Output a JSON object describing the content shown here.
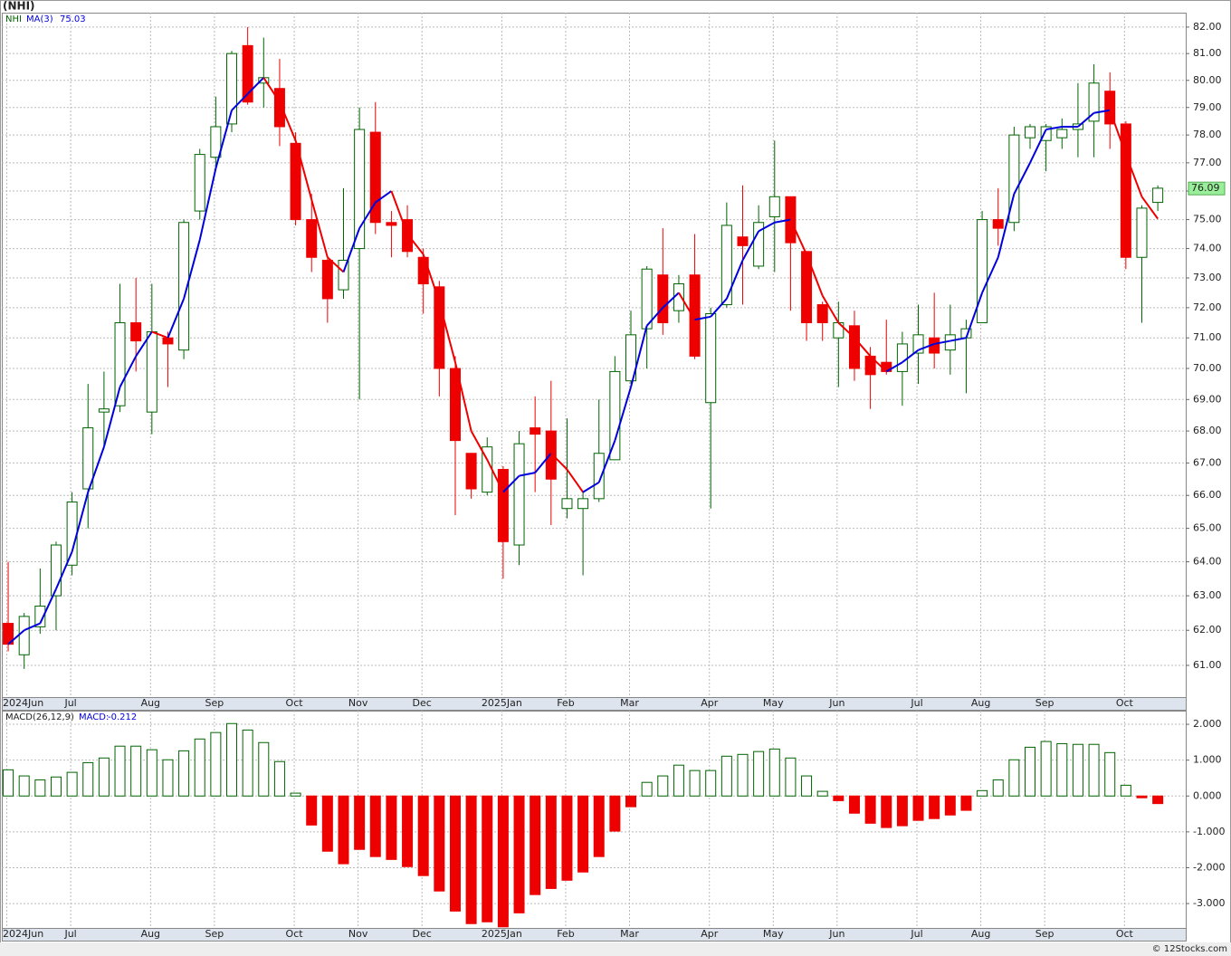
{
  "chart_data": [
    {
      "type": "candlestick",
      "title": "(NHI)",
      "symbol": "NHI",
      "log_scale": true,
      "grid": true,
      "ylim": [
        60.11,
        82.55
      ],
      "yticks": [
        {
          "value": 61,
          "label": "61.00"
        },
        {
          "value": 62,
          "label": "62.00"
        },
        {
          "value": 63,
          "label": "63.00"
        },
        {
          "value": 64,
          "label": "64.00"
        },
        {
          "value": 65,
          "label": "65.00"
        },
        {
          "value": 66,
          "label": "66.00"
        },
        {
          "value": 67,
          "label": "67.00"
        },
        {
          "value": 68,
          "label": "68.00"
        },
        {
          "value": 69,
          "label": "69.00"
        },
        {
          "value": 70,
          "label": "70.00"
        },
        {
          "value": 71,
          "label": "71.00"
        },
        {
          "value": 72,
          "label": "72.00"
        },
        {
          "value": 73,
          "label": "73.00"
        },
        {
          "value": 74,
          "label": "74.00"
        },
        {
          "value": 75,
          "label": "75.00"
        },
        {
          "value": 76,
          "label": "76.00"
        },
        {
          "value": 77,
          "label": "77.00"
        },
        {
          "value": 78,
          "label": "78.00"
        },
        {
          "value": 79,
          "label": "79.00"
        },
        {
          "value": 80,
          "label": "80.00"
        },
        {
          "value": 81,
          "label": "81.00"
        },
        {
          "value": 82,
          "label": "82.00"
        }
      ],
      "xlim": [
        -0.4,
        73.75
      ],
      "xticks": [
        {
          "value": 0,
          "label": "2024Jun"
        },
        {
          "value": 4,
          "label": "Jul"
        },
        {
          "value": 9,
          "label": "Aug"
        },
        {
          "value": 13,
          "label": "Sep"
        },
        {
          "value": 18,
          "label": "Oct"
        },
        {
          "value": 22,
          "label": "Nov"
        },
        {
          "value": 26,
          "label": "Dec"
        },
        {
          "value": 31,
          "label": "2025Jan"
        },
        {
          "value": 35,
          "label": "Feb"
        },
        {
          "value": 39,
          "label": "Mar"
        },
        {
          "value": 44,
          "label": "Apr"
        },
        {
          "value": 48,
          "label": "May"
        },
        {
          "value": 52,
          "label": "Jun"
        },
        {
          "value": 57,
          "label": "Jul"
        },
        {
          "value": 61,
          "label": "Aug"
        },
        {
          "value": 65,
          "label": "Sep"
        },
        {
          "value": 70,
          "label": "Oct"
        }
      ],
      "open": [
        62.2,
        61.3,
        62.1,
        63.0,
        63.9,
        66.2,
        68.6,
        68.8,
        71.5,
        68.6,
        71.0,
        70.6,
        75.3,
        77.2,
        78.4,
        81.3,
        79.9,
        79.7,
        77.7,
        75.0,
        73.6,
        72.6,
        74.0,
        78.1,
        74.9,
        75.0,
        73.7,
        72.7,
        70.0,
        67.3,
        66.1,
        66.8,
        64.5,
        68.1,
        68.0,
        65.6,
        65.6,
        65.9,
        67.1,
        69.6,
        71.3,
        73.1,
        71.9,
        73.1,
        68.9,
        72.1,
        74.4,
        73.4,
        75.1,
        75.8,
        73.9,
        72.1,
        71.0,
        71.4,
        70.4,
        70.2,
        69.9,
        70.5,
        71.0,
        70.6,
        71.0,
        71.5,
        75.0,
        74.9,
        77.9,
        77.8,
        77.9,
        78.2,
        78.5,
        79.6,
        78.4,
        73.7,
        75.6
      ],
      "high": [
        64.0,
        62.5,
        63.8,
        64.6,
        66.1,
        69.5,
        69.9,
        72.8,
        73.0,
        72.8,
        71.2,
        75.0,
        77.5,
        79.4,
        81.1,
        82.0,
        81.6,
        80.8,
        78.1,
        75.9,
        73.7,
        76.1,
        79.0,
        79.2,
        75.3,
        75.5,
        74.0,
        72.9,
        70.4,
        67.3,
        67.8,
        66.9,
        68.0,
        69.1,
        69.6,
        68.4,
        66.1,
        69.0,
        70.4,
        71.9,
        73.4,
        74.7,
        73.1,
        74.5,
        72.0,
        75.6,
        76.2,
        75.5,
        77.8,
        75.8,
        73.9,
        72.2,
        72.2,
        71.9,
        70.7,
        71.6,
        71.2,
        72.1,
        72.5,
        72.1,
        71.6,
        75.3,
        76.1,
        78.3,
        78.4,
        78.4,
        78.6,
        79.9,
        80.6,
        80.3,
        78.5,
        75.5,
        76.2
      ],
      "low": [
        61.4,
        60.9,
        61.9,
        62.0,
        63.6,
        65.0,
        67.5,
        68.6,
        69.9,
        67.9,
        69.4,
        70.3,
        75.0,
        76.8,
        78.1,
        79.1,
        79.0,
        77.6,
        74.8,
        73.2,
        71.5,
        72.3,
        69.0,
        74.5,
        73.7,
        73.7,
        71.8,
        69.1,
        65.4,
        65.9,
        66.0,
        63.5,
        63.9,
        66.1,
        65.1,
        65.3,
        63.6,
        65.8,
        67.1,
        69.5,
        70.0,
        71.1,
        71.5,
        70.3,
        65.6,
        72.0,
        72.1,
        73.3,
        73.2,
        71.9,
        70.9,
        70.9,
        69.4,
        69.6,
        68.7,
        69.8,
        68.8,
        69.5,
        70.0,
        69.8,
        69.2,
        71.5,
        74.1,
        74.6,
        77.5,
        76.7,
        77.5,
        77.2,
        77.2,
        77.5,
        73.3,
        71.5,
        75.3
      ],
      "close": [
        61.6,
        62.4,
        62.7,
        64.5,
        65.8,
        68.1,
        68.7,
        71.5,
        70.9,
        71.2,
        70.8,
        74.9,
        77.3,
        78.3,
        81.0,
        79.2,
        80.1,
        78.3,
        75.0,
        73.7,
        72.3,
        73.6,
        78.2,
        74.9,
        74.8,
        73.9,
        72.8,
        70.0,
        67.7,
        66.2,
        67.5,
        64.6,
        67.6,
        67.9,
        66.5,
        65.9,
        65.9,
        67.3,
        69.9,
        71.1,
        73.3,
        71.5,
        72.8,
        70.4,
        71.8,
        74.8,
        74.1,
        74.9,
        75.8,
        74.2,
        71.5,
        71.5,
        71.5,
        70.0,
        69.8,
        69.9,
        70.8,
        71.1,
        70.5,
        71.1,
        71.3,
        75.0,
        74.7,
        78.0,
        78.3,
        78.3,
        78.2,
        78.4,
        79.9,
        78.4,
        73.7,
        75.4,
        76.1
      ],
      "up_color": "#006400",
      "down_color": "#ee0000",
      "last_value": 76.09,
      "last_value_color": "#99ee99",
      "overlay": {
        "type": "line",
        "name": "MA(3)",
        "values": [
          61.6,
          62.0,
          62.2,
          63.2,
          64.3,
          66.1,
          67.5,
          69.4,
          70.4,
          71.2,
          71.0,
          72.3,
          74.3,
          76.8,
          78.9,
          79.5,
          80.1,
          79.2,
          77.8,
          75.7,
          73.7,
          73.2,
          74.7,
          75.6,
          76.0,
          74.5,
          73.8,
          72.2,
          70.2,
          68.0,
          67.1,
          66.1,
          66.6,
          66.7,
          67.3,
          66.8,
          66.1,
          66.4,
          67.7,
          69.4,
          71.4,
          72.0,
          72.5,
          71.6,
          71.7,
          72.3,
          73.6,
          74.6,
          74.9,
          75.0,
          73.8,
          72.4,
          71.5,
          71.0,
          70.4,
          69.9,
          70.2,
          70.6,
          70.8,
          70.9,
          71.0,
          72.5,
          73.7,
          75.9,
          77.0,
          78.2,
          78.3,
          78.3,
          78.8,
          78.9,
          77.3,
          75.8,
          75.03
        ],
        "up_color": "#0000dd",
        "down_color": "#ee0000"
      }
    },
    {
      "type": "histogram",
      "name": "MACD(26,12,9)",
      "legend_label": "MACD:",
      "grid": true,
      "ylim": [
        -3.68,
        2.38
      ],
      "yticks": [
        {
          "value": 2,
          "label": "2.000"
        },
        {
          "value": 1,
          "label": "1.000"
        },
        {
          "value": 0,
          "label": "0.000"
        },
        {
          "value": -1,
          "label": "-1.000"
        },
        {
          "value": -2,
          "label": "-2.000"
        },
        {
          "value": -3,
          "label": "-3.000"
        }
      ],
      "values": [
        0.73,
        0.56,
        0.45,
        0.53,
        0.66,
        0.93,
        1.06,
        1.39,
        1.39,
        1.29,
        1.01,
        1.26,
        1.59,
        1.77,
        2.02,
        1.84,
        1.49,
        0.96,
        0.08,
        -0.81,
        -1.54,
        -1.89,
        -1.49,
        -1.69,
        -1.77,
        -1.97,
        -2.22,
        -2.65,
        -3.21,
        -3.56,
        -3.51,
        -3.65,
        -3.26,
        -2.75,
        -2.58,
        -2.35,
        -2.12,
        -1.69,
        -0.98,
        -0.3,
        0.38,
        0.56,
        0.86,
        0.71,
        0.71,
        1.11,
        1.16,
        1.24,
        1.31,
        1.06,
        0.56,
        0.13,
        -0.13,
        -0.48,
        -0.76,
        -0.88,
        -0.83,
        -0.68,
        -0.63,
        -0.53,
        -0.4,
        0.15,
        0.45,
        1.01,
        1.36,
        1.52,
        1.46,
        1.44,
        1.44,
        1.21,
        0.3,
        -0.05,
        -0.212
      ],
      "up_color": "#006400",
      "down_color": "#ee0000"
    }
  ],
  "footer": "© 12Stocks.com"
}
